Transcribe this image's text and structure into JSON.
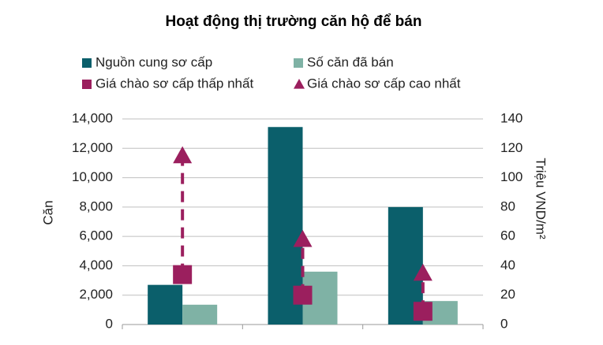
{
  "chart_data": {
    "type": "bar",
    "title": "Hoạt động thị trường căn hộ để bán",
    "categories": [
      null,
      null,
      null
    ],
    "series": [
      {
        "name": "Nguồn cung sơ cấp",
        "color": "#0b5f6b",
        "values": [
          2700,
          13450,
          8000
        ]
      },
      {
        "name": "Số căn đã bán",
        "color": "#7fb2a5",
        "values": [
          1350,
          3600,
          1600
        ]
      },
      {
        "name": "Giá chào sơ cấp thấp nhất",
        "color": "#9b1f5e",
        "axis": "y2",
        "marker": "square",
        "values": [
          34,
          20,
          9
        ]
      },
      {
        "name": "Giá chào sơ cấp cao nhất",
        "color": "#9b1f5e",
        "axis": "y2",
        "marker": "triangle",
        "values": [
          115,
          58,
          35
        ]
      }
    ],
    "ylabel": "Căn",
    "y2label": "Triệu VND/m²",
    "ylim": [
      0,
      14000
    ],
    "yticks": [
      0,
      {
        "value": 2000,
        "label": "2,000"
      },
      {
        "value": 4000,
        "label": "4,000"
      },
      {
        "value": 6000,
        "label": "6,000"
      },
      {
        "value": 8000,
        "label": "8,000"
      },
      {
        "value": 10000,
        "label": "10,000"
      },
      {
        "value": 12000,
        "label": "12,000"
      },
      {
        "value": 14000,
        "label": "14,000"
      }
    ],
    "y2lim": [
      0,
      140
    ],
    "y2ticks": [
      0,
      20,
      40,
      60,
      80,
      100,
      120,
      140
    ],
    "grid": true,
    "legend": "top"
  }
}
